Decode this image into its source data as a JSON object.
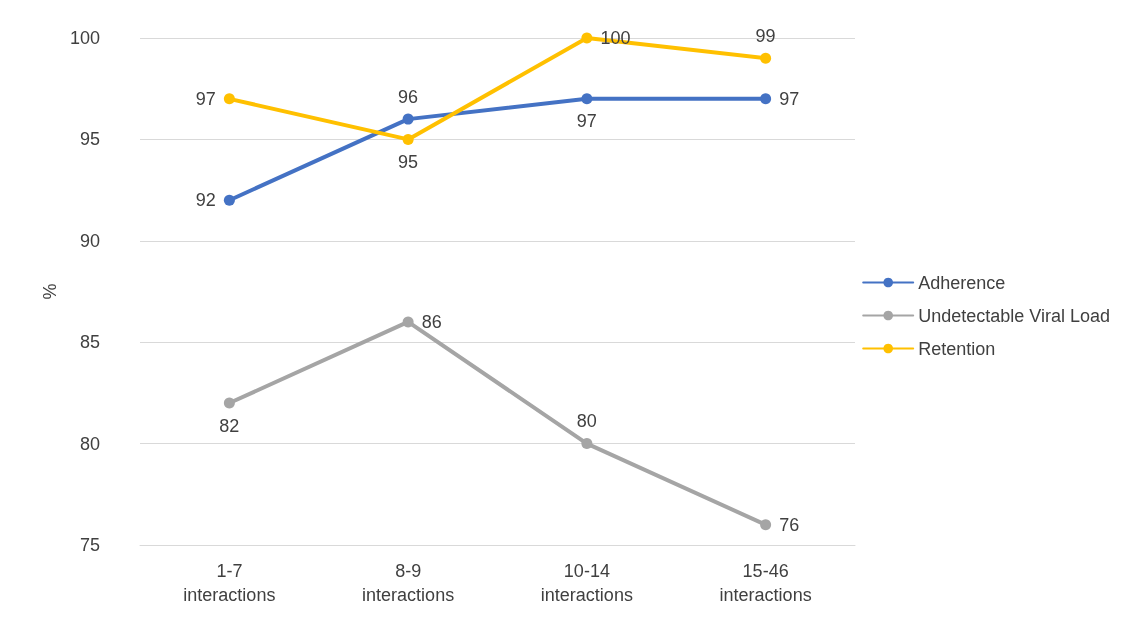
{
  "chart_data": {
    "type": "line",
    "ylabel": "%",
    "categories": [
      "1-7 interactions",
      "8-9 interactions",
      "10-14 interactions",
      "15-46 interactions"
    ],
    "series": [
      {
        "name": "Adherence",
        "color": "#4472c4",
        "values": [
          92,
          96,
          97,
          97
        ]
      },
      {
        "name": "Undetectable Viral Load",
        "color": "#a5a5a5",
        "values": [
          82,
          86,
          80,
          76
        ]
      },
      {
        "name": "Retention",
        "color": "#ffc000",
        "values": [
          97,
          95,
          100,
          99
        ]
      }
    ],
    "ylim": [
      75,
      100
    ],
    "yticks": [
      75,
      80,
      85,
      90,
      95,
      100
    ],
    "grid": "y",
    "legend": "right",
    "marker": "circle",
    "line_style": "solid",
    "data_labels": true
  }
}
